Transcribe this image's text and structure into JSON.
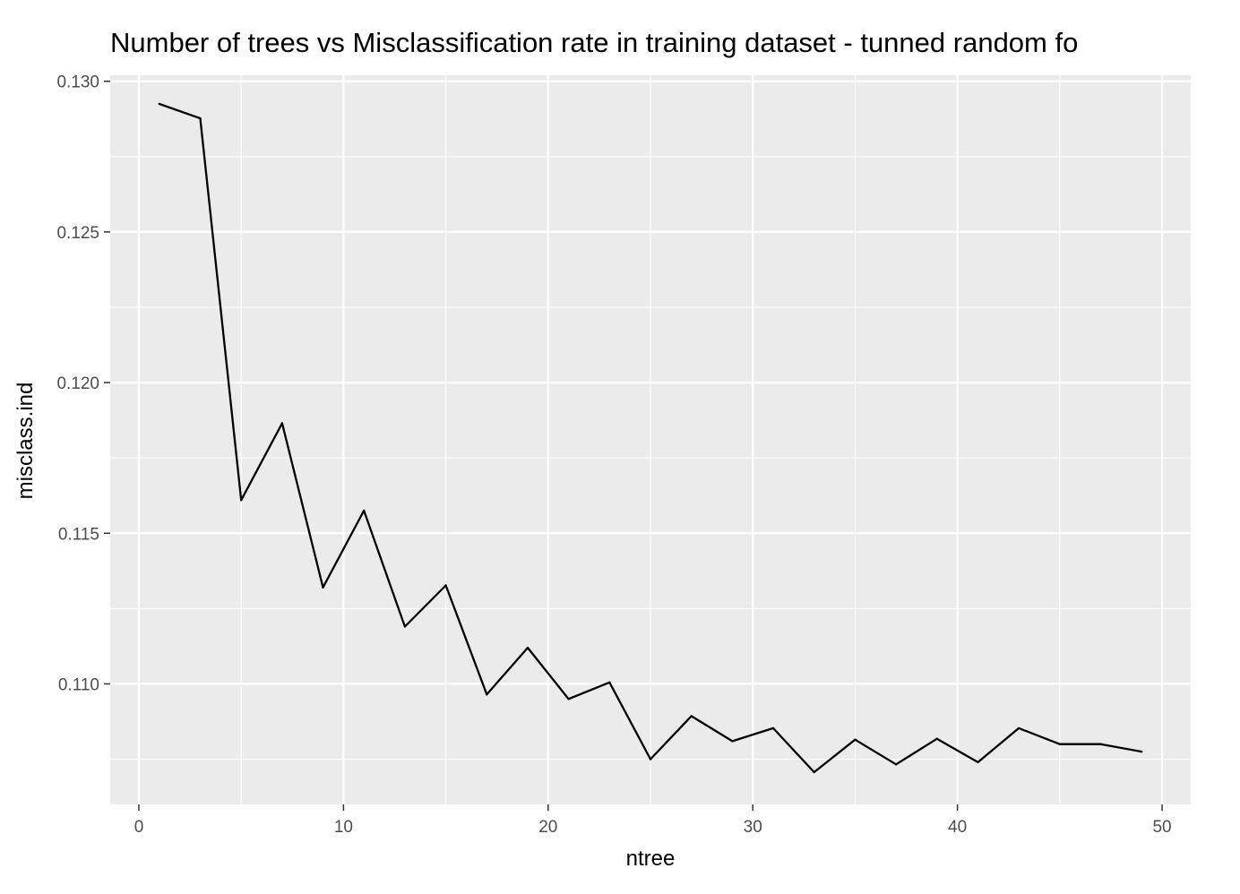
{
  "chart_data": {
    "type": "line",
    "title": "Number of trees vs Misclassification rate in training dataset - tunned random fo",
    "xlabel": "ntree",
    "ylabel": "misclass.ind",
    "xlim": [
      -1.4,
      51.4
    ],
    "ylim": [
      0.106,
      0.1302
    ],
    "x_ticks": [
      0,
      10,
      20,
      30,
      40,
      50
    ],
    "x_tick_labels": [
      "0",
      "10",
      "20",
      "30",
      "40",
      "50"
    ],
    "y_ticks": [
      0.11,
      0.115,
      0.12,
      0.125,
      0.13
    ],
    "y_tick_labels": [
      "0.110",
      "0.115",
      "0.120",
      "0.125",
      "0.130"
    ],
    "grid": true,
    "colors": {
      "panel": "#ebebeb",
      "grid": "#ffffff",
      "line": "#000000"
    },
    "series": [
      {
        "x": [
          1,
          3,
          5,
          7,
          9,
          11,
          13,
          15,
          17,
          19,
          21,
          23,
          25,
          27,
          29,
          31,
          33,
          35,
          37,
          39,
          41,
          43,
          45,
          47,
          49
        ],
        "y": [
          0.12925,
          0.12877,
          0.1161,
          0.11865,
          0.1132,
          0.11575,
          0.1119,
          0.11327,
          0.10965,
          0.1112,
          0.1095,
          0.11005,
          0.1075,
          0.10893,
          0.1081,
          0.10853,
          0.10707,
          0.10815,
          0.10733,
          0.10818,
          0.1074,
          0.10853,
          0.108,
          0.108,
          0.10775
        ]
      }
    ]
  }
}
